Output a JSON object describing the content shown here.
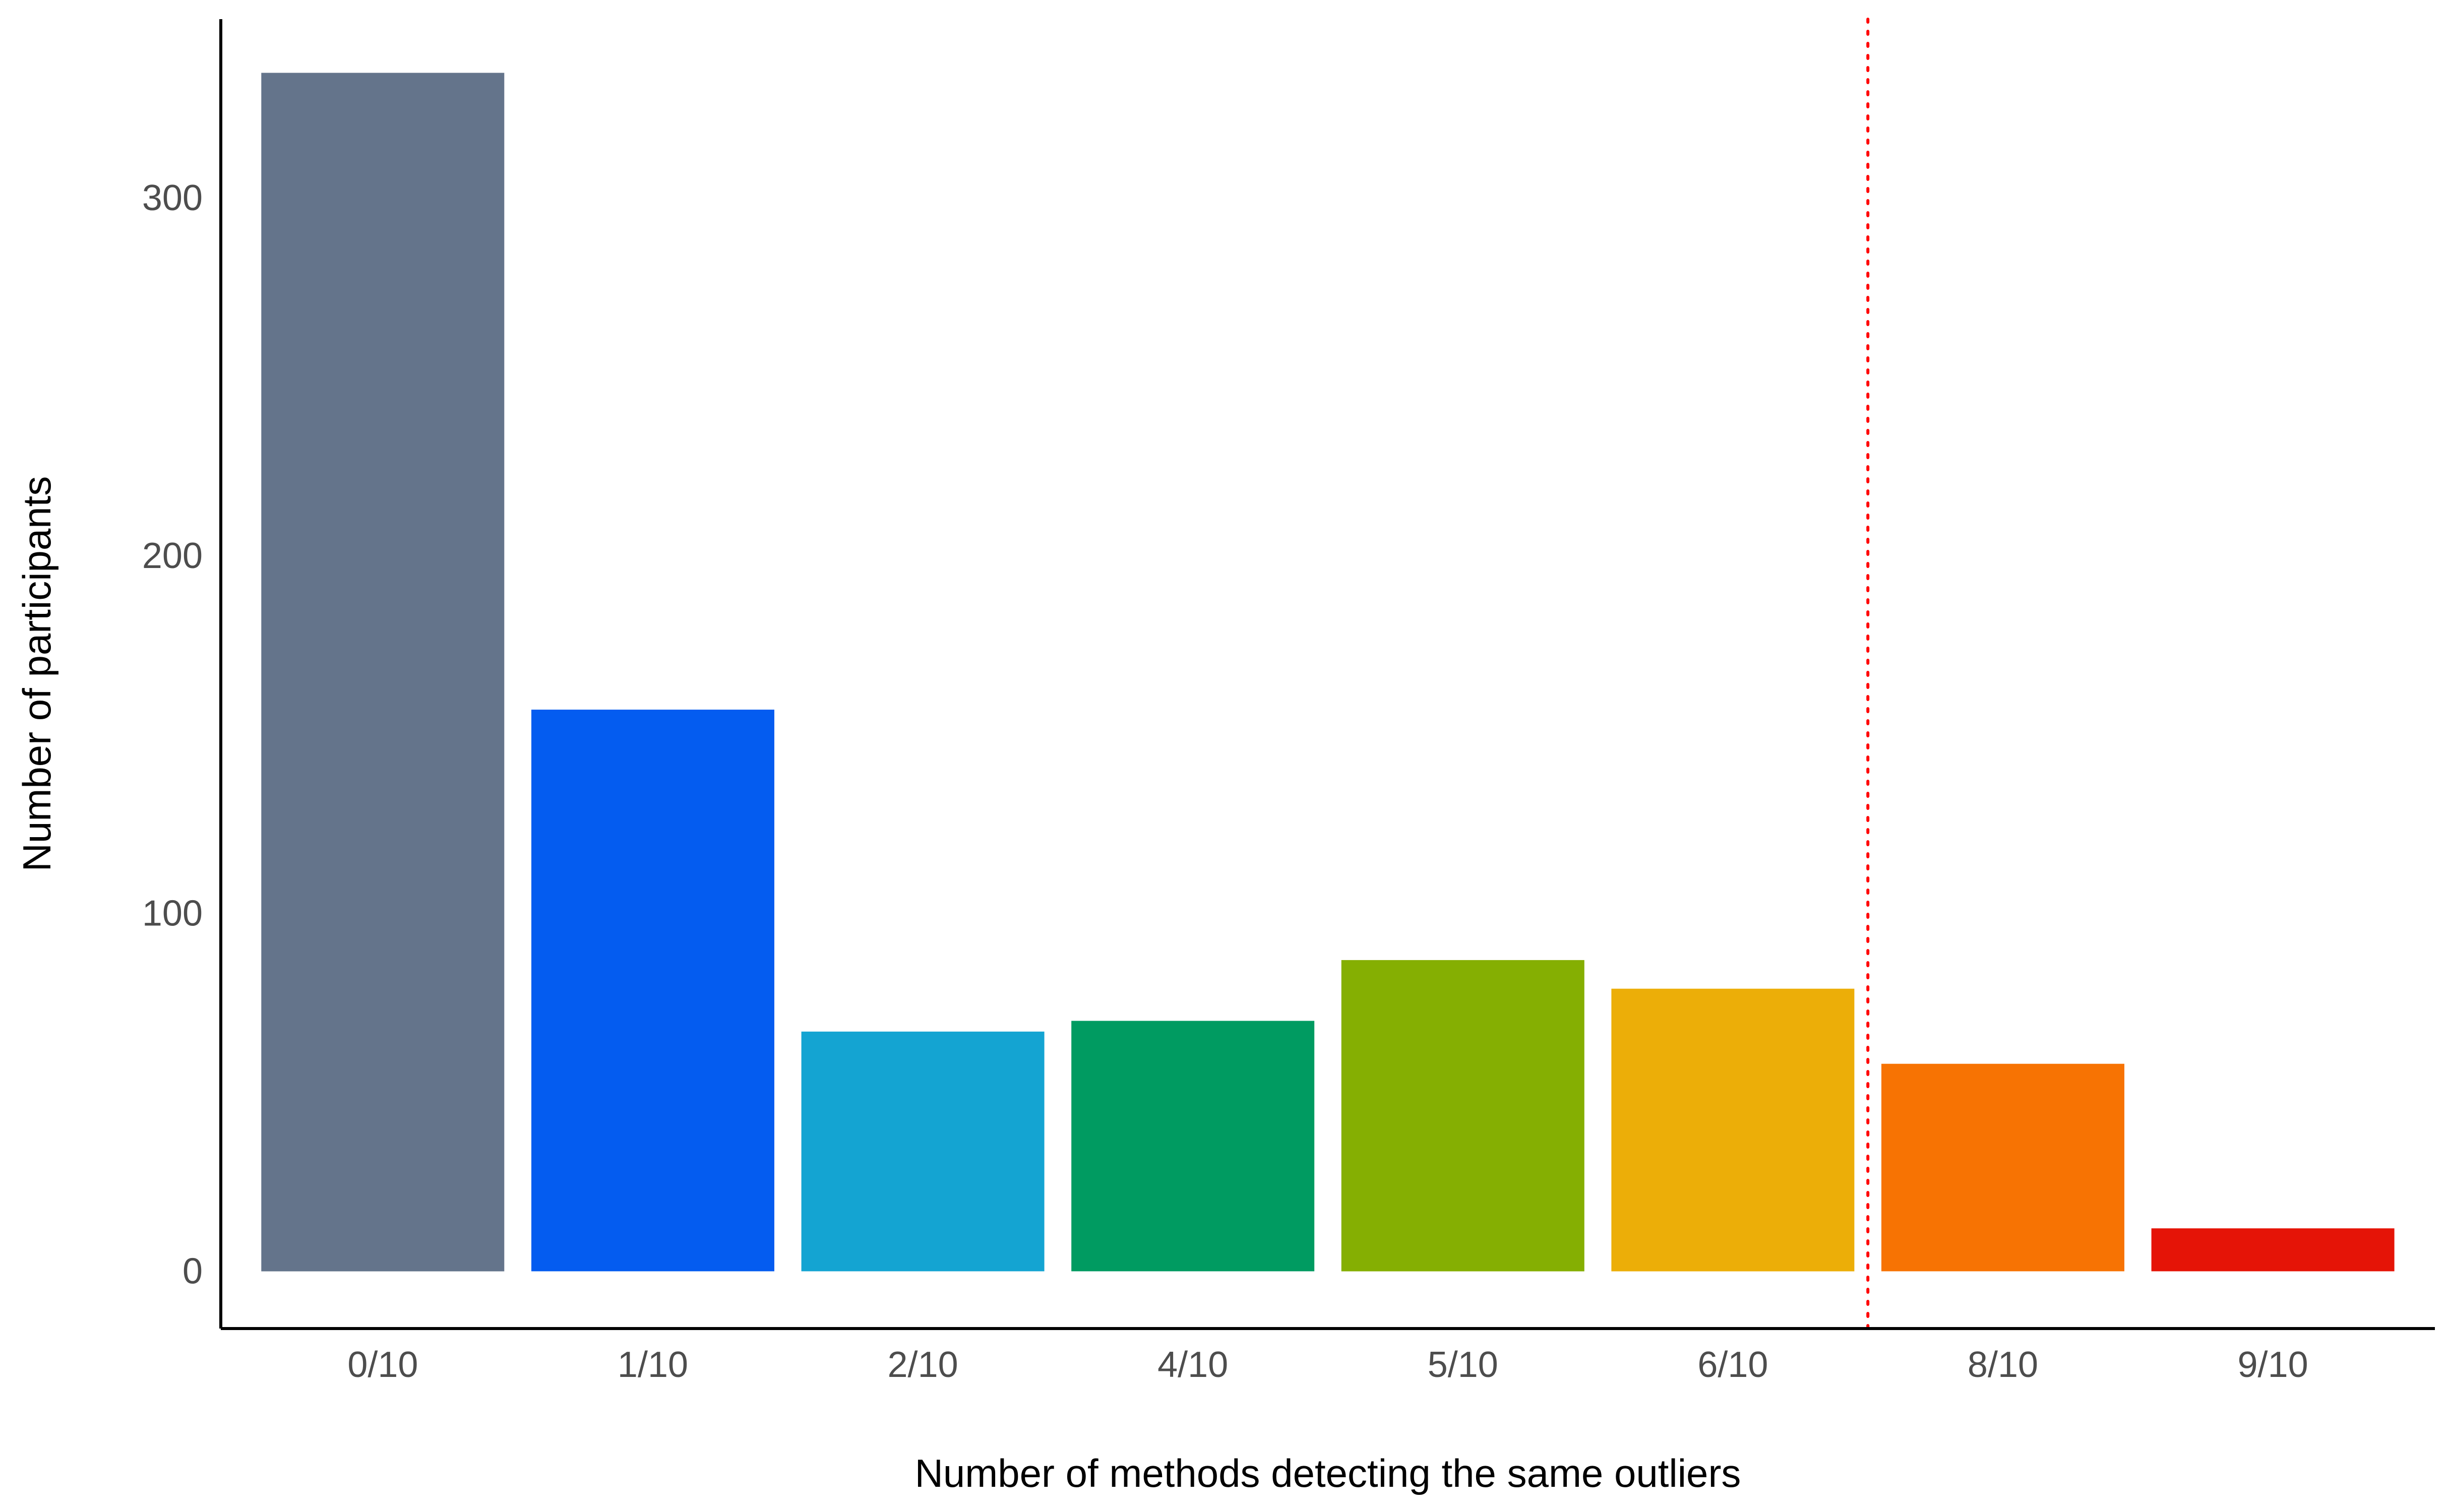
{
  "chart_data": {
    "type": "bar",
    "title": "",
    "xlabel": "Number of methods detecting the same outliers",
    "ylabel": "Number of participants",
    "categories": [
      "0/10",
      "1/10",
      "2/10",
      "4/10",
      "5/10",
      "6/10",
      "8/10",
      "9/10"
    ],
    "values": [
      335,
      157,
      67,
      70,
      87,
      79,
      58,
      12
    ],
    "colors": [
      "#64748B",
      "#045CF0",
      "#14A4D2",
      "#009B61",
      "#85AF02",
      "#ECAE08",
      "#F77303",
      "#E51407"
    ],
    "yticks": [
      0,
      100,
      200,
      300
    ],
    "ylim": [
      -16,
      350
    ],
    "reference_line": {
      "between": [
        "6/10",
        "8/10"
      ],
      "color": "#FF0000",
      "style": "dotted"
    },
    "grid": false,
    "legend": "none"
  }
}
